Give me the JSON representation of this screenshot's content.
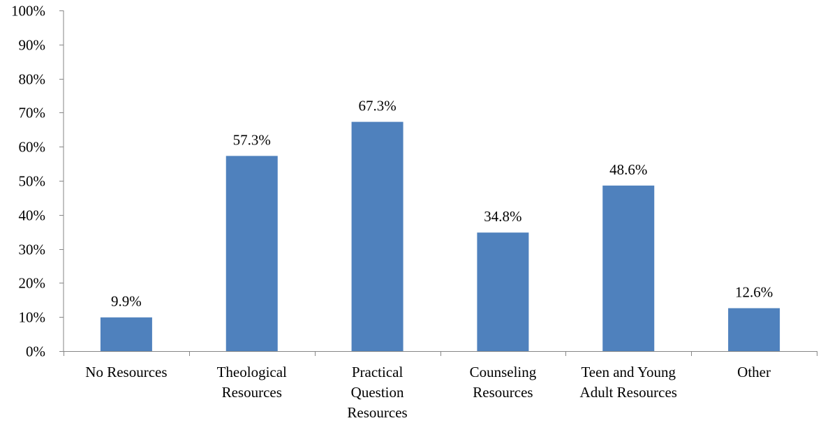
{
  "chart_data": {
    "type": "bar",
    "categories": [
      [
        "No Resources"
      ],
      [
        "Theological",
        "Resources"
      ],
      [
        "Practical",
        "Question",
        "Resources"
      ],
      [
        "Counseling",
        "Resources"
      ],
      [
        "Teen and Young",
        "Adult Resources"
      ],
      [
        "Other"
      ]
    ],
    "values": [
      9.9,
      57.3,
      67.3,
      34.8,
      48.6,
      12.6
    ],
    "data_labels": [
      "9.9%",
      "57.3%",
      "67.3%",
      "34.8%",
      "48.6%",
      "12.6%"
    ],
    "ylim": [
      0,
      100
    ],
    "yticks": [
      0,
      10,
      20,
      30,
      40,
      50,
      60,
      70,
      80,
      90,
      100
    ],
    "ytick_labels": [
      "0%",
      "10%",
      "20%",
      "30%",
      "40%",
      "50%",
      "60%",
      "70%",
      "80%",
      "90%",
      "100%"
    ],
    "title": "",
    "xlabel": "",
    "ylabel": "",
    "grid": false,
    "legend": "none",
    "bar_color": "#4F81BD",
    "axis_color": "#868686"
  }
}
